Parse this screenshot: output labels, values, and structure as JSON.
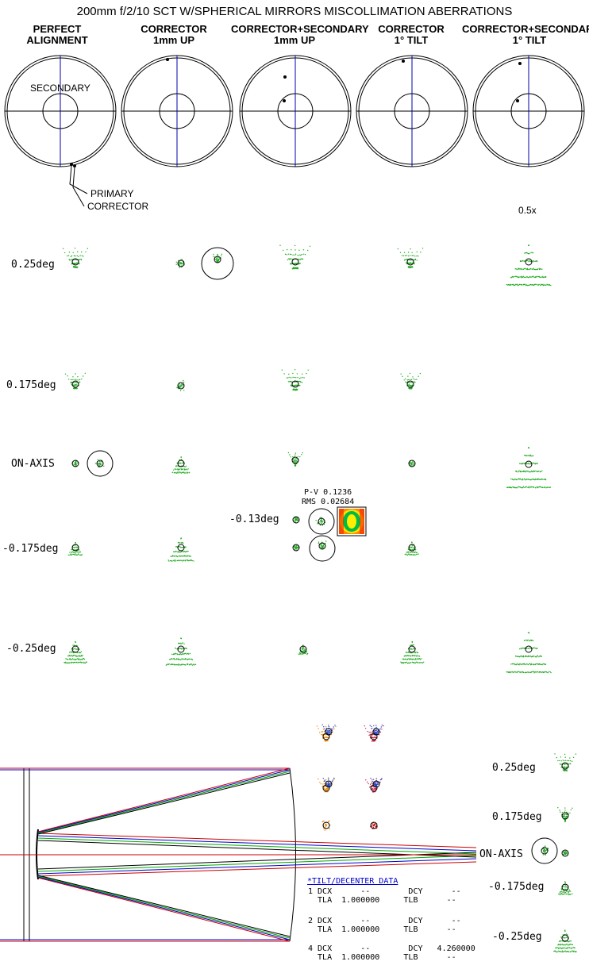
{
  "title": "200mm f/2/10 SCT W/SPHERICAL MIRRORS MISCOLLIMATION ABERRATIONS",
  "columns": [
    {
      "line1": "PERFECT",
      "line2": "ALIGNMENT"
    },
    {
      "line1": "CORRECTOR",
      "line2": "1mm UP"
    },
    {
      "line1": "CORRECTOR+SECONDARY",
      "line2": "1mm UP"
    },
    {
      "line1": "CORRECTOR",
      "line2": "1° TILT"
    },
    {
      "line1": "CORRECTOR+SECONDARY",
      "line2": "1° TILT"
    }
  ],
  "pupil_labels": {
    "secondary": "SECONDARY",
    "primary": "PRIMARY",
    "corrector": "CORRECTOR"
  },
  "scale_note": "0.5x",
  "field_labels": [
    "0.25deg",
    "0.175deg",
    "ON-AXIS",
    "-0.175deg",
    "-0.25deg"
  ],
  "inset": {
    "field": "-0.13deg",
    "pv": "P-V 0.1236",
    "rms": "RMS 0.02684"
  },
  "right_field_labels": [
    "0.25deg",
    "0.175deg",
    "ON-AXIS",
    "-0.175deg",
    "-0.25deg"
  ],
  "tilt_table": {
    "header": "*TILT/DECENTER DATA",
    "rows": [
      {
        "line1": "1 DCX      --        DCY      --",
        "line2": "  TLA  1.000000     TLB      --"
      },
      {
        "line1": "2 DCX      --        DCY      --",
        "line2": "  TLA  1.000000     TLB      --"
      },
      {
        "line1": "4 DCX      --        DCY   4.260000",
        "line2": "  TLA  1.000000     TLB      --"
      }
    ]
  },
  "colors": {
    "spot": "#22aa22",
    "red": "#cc0000",
    "blue": "#0000cc",
    "axis": "#0000aa"
  }
}
